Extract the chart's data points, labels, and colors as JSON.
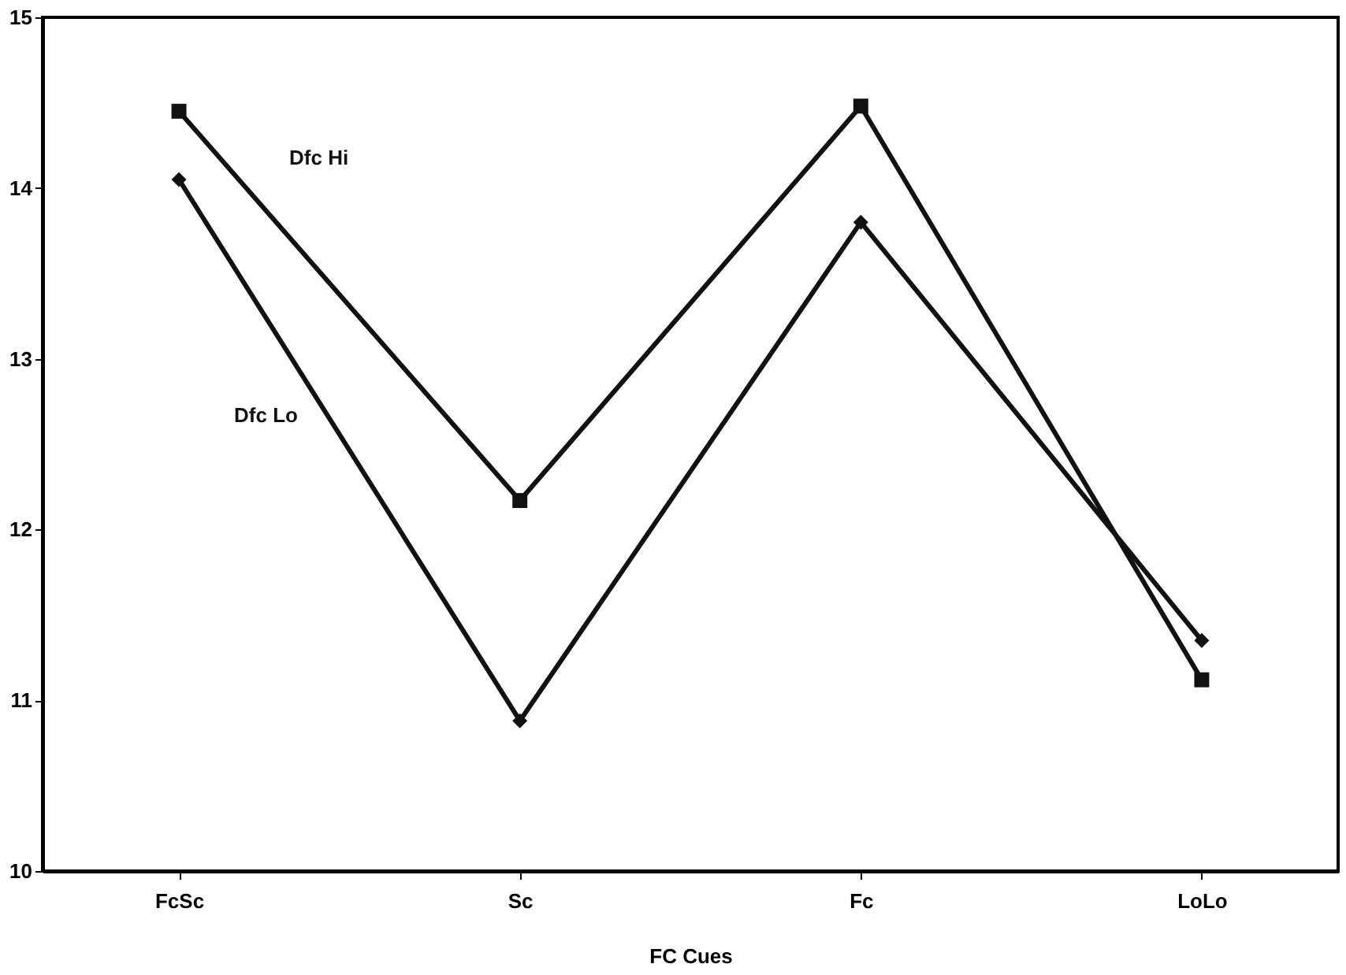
{
  "chart_data": {
    "type": "line",
    "xlabel": "FC  Cues",
    "categories": [
      "FcSc",
      "Sc",
      "Fc",
      "LoLo"
    ],
    "series": [
      {
        "name": "Dfc Hi",
        "color": "#111111",
        "marker": "square",
        "values": [
          14.45,
          12.17,
          14.48,
          11.12
        ]
      },
      {
        "name": "Dfc Lo",
        "color": "#111111",
        "marker": "diamond",
        "values": [
          14.05,
          10.88,
          13.8,
          11.35
        ]
      }
    ],
    "ylim": [
      10,
      15
    ],
    "yticks": [
      10,
      11,
      12,
      13,
      14,
      15
    ],
    "grid": false,
    "legend": false
  }
}
